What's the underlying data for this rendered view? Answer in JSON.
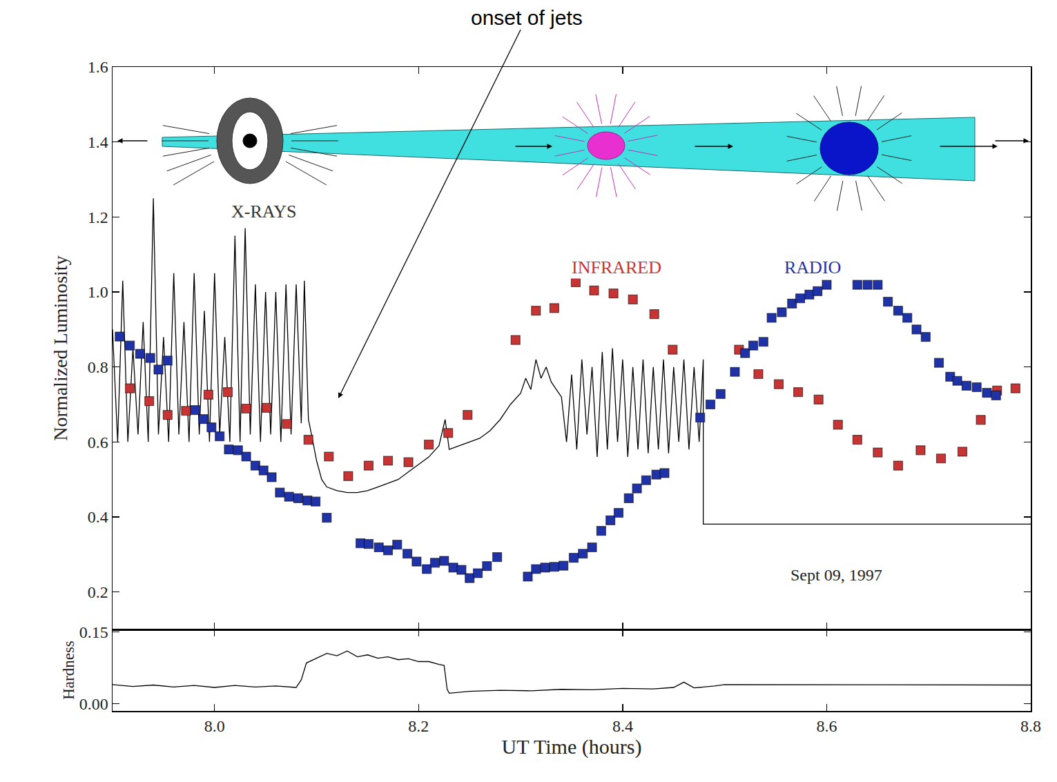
{
  "chart_data": [
    {
      "type": "scatter",
      "y_label": "Normalized Luminosity",
      "xlim": [
        7.9,
        8.8
      ],
      "xticks": [
        {
          "value": 8,
          "label": "8.0"
        },
        8.2,
        8.4,
        8.6,
        8.8
      ],
      "ylim": [
        0.1,
        1.6
      ],
      "yticks": [
        0.2,
        0.4,
        0.6,
        0.8,
        {
          "value": 1,
          "label": "1.0"
        },
        1.2,
        1.4,
        1.6
      ],
      "tick_labels": "y",
      "grid": false,
      "series": [
        {
          "name": "X-RAYS",
          "type": "line",
          "color": "#000000",
          "x": [
            7.9,
            7.905,
            7.91,
            7.915,
            7.92,
            7.925,
            7.93,
            7.935,
            7.94,
            7.945,
            7.95,
            7.955,
            7.96,
            7.965,
            7.97,
            7.975,
            7.98,
            7.985,
            7.99,
            7.995,
            8.0,
            8.005,
            8.01,
            8.015,
            8.02,
            8.025,
            8.03,
            8.035,
            8.04,
            8.045,
            8.05,
            8.055,
            8.06,
            8.065,
            8.07,
            8.075,
            8.08,
            8.085,
            8.088,
            8.092,
            8.095,
            8.1,
            8.105,
            8.11,
            8.12,
            8.13,
            8.14,
            8.15,
            8.16,
            8.17,
            8.18,
            8.19,
            8.2,
            8.21,
            8.22,
            8.226,
            8.23,
            8.24,
            8.25,
            8.26,
            8.27,
            8.28,
            8.29,
            8.3,
            8.305,
            8.31,
            8.315,
            8.32,
            8.325,
            8.33,
            8.335,
            8.34,
            8.345,
            8.35,
            8.355,
            8.36,
            8.365,
            8.37,
            8.375,
            8.38,
            8.385,
            8.39,
            8.395,
            8.4,
            8.405,
            8.41,
            8.415,
            8.42,
            8.425,
            8.43,
            8.435,
            8.44,
            8.445,
            8.45,
            8.455,
            8.46,
            8.465,
            8.47,
            8.475,
            8.479,
            8.479,
            8.8
          ],
          "values": [
            0.9,
            0.6,
            1.03,
            0.6,
            0.85,
            0.62,
            0.92,
            0.6,
            1.25,
            0.62,
            0.88,
            0.6,
            1.05,
            0.62,
            0.92,
            0.6,
            1.05,
            0.62,
            0.95,
            0.6,
            1.05,
            0.62,
            0.88,
            0.6,
            1.15,
            0.6,
            1.17,
            0.62,
            1.02,
            0.6,
            1.0,
            0.62,
            1.0,
            0.6,
            1.02,
            0.62,
            1.02,
            0.65,
            1.03,
            0.66,
            0.62,
            0.55,
            0.5,
            0.48,
            0.47,
            0.465,
            0.465,
            0.47,
            0.48,
            0.49,
            0.5,
            0.52,
            0.54,
            0.56,
            0.59,
            0.66,
            0.58,
            0.59,
            0.6,
            0.61,
            0.63,
            0.66,
            0.7,
            0.73,
            0.77,
            0.74,
            0.82,
            0.77,
            0.8,
            0.76,
            0.74,
            0.72,
            0.6,
            0.78,
            0.58,
            0.82,
            0.62,
            0.8,
            0.56,
            0.84,
            0.58,
            0.85,
            0.6,
            0.82,
            0.56,
            0.8,
            0.58,
            0.82,
            0.57,
            0.8,
            0.58,
            0.82,
            0.57,
            0.8,
            0.6,
            0.82,
            0.58,
            0.8,
            0.6,
            0.82,
            0.381,
            0.381
          ]
        },
        {
          "name": "INFRARED",
          "type": "scatter",
          "marker": "square",
          "color": "#c83434",
          "x": [
            7.917,
            7.936,
            7.954,
            7.972,
            7.994,
            8.013,
            8.031,
            8.051,
            8.071,
            8.092,
            8.112,
            8.131,
            8.151,
            8.17,
            8.19,
            8.21,
            8.229,
            8.248,
            8.295,
            8.315,
            8.333,
            8.354,
            8.372,
            8.391,
            8.41,
            8.431,
            8.449,
            8.514,
            8.533,
            8.553,
            8.572,
            8.592,
            8.611,
            8.63,
            8.65,
            8.67,
            8.692,
            8.712,
            8.733,
            8.751,
            8.767,
            8.785
          ],
          "values": [
            0.743,
            0.709,
            0.672,
            0.683,
            0.726,
            0.733,
            0.689,
            0.691,
            0.648,
            0.606,
            0.561,
            0.509,
            0.537,
            0.55,
            0.546,
            0.593,
            0.624,
            0.672,
            0.872,
            0.95,
            0.957,
            1.026,
            1.004,
            0.996,
            0.98,
            0.941,
            0.846,
            0.846,
            0.781,
            0.754,
            0.733,
            0.713,
            0.646,
            0.606,
            0.572,
            0.537,
            0.578,
            0.556,
            0.574,
            0.659,
            0.737,
            0.743
          ]
        },
        {
          "name": "RADIO",
          "type": "scatter",
          "marker": "square",
          "color": "#1f32a8",
          "x": [
            7.907,
            7.917,
            7.927,
            7.937,
            7.945,
            7.954,
            7.981,
            7.989,
            7.997,
            8.005,
            8.014,
            8.023,
            8.031,
            8.04,
            8.048,
            8.056,
            8.064,
            8.073,
            8.082,
            8.091,
            8.099,
            8.11,
            8.143,
            8.151,
            8.161,
            8.17,
            8.179,
            8.189,
            8.198,
            8.208,
            8.216,
            8.225,
            8.234,
            8.242,
            8.25,
            8.258,
            8.267,
            8.277,
            8.307,
            8.315,
            8.324,
            8.333,
            8.342,
            8.352,
            8.361,
            8.37,
            8.379,
            8.388,
            8.396,
            8.406,
            8.414,
            8.423,
            8.433,
            8.441,
            8.476,
            8.486,
            8.496,
            8.51,
            8.52,
            8.528,
            8.538,
            8.546,
            8.556,
            8.566,
            8.574,
            8.583,
            8.591,
            8.6,
            8.63,
            8.64,
            8.65,
            8.66,
            8.67,
            8.679,
            8.688,
            8.697,
            8.71,
            8.721,
            8.728,
            8.737,
            8.747,
            8.757,
            8.766
          ],
          "values": [
            0.881,
            0.857,
            0.835,
            0.824,
            0.793,
            0.817,
            0.685,
            0.661,
            0.639,
            0.615,
            0.58,
            0.578,
            0.561,
            0.537,
            0.524,
            0.506,
            0.465,
            0.454,
            0.45,
            0.444,
            0.441,
            0.398,
            0.33,
            0.328,
            0.319,
            0.311,
            0.326,
            0.302,
            0.281,
            0.261,
            0.278,
            0.283,
            0.265,
            0.259,
            0.237,
            0.25,
            0.269,
            0.293,
            0.241,
            0.261,
            0.265,
            0.267,
            0.27,
            0.291,
            0.302,
            0.319,
            0.363,
            0.391,
            0.411,
            0.45,
            0.476,
            0.498,
            0.513,
            0.517,
            0.665,
            0.7,
            0.728,
            0.787,
            0.837,
            0.857,
            0.867,
            0.931,
            0.946,
            0.969,
            0.983,
            0.993,
            1.002,
            1.019,
            1.019,
            1.019,
            1.019,
            0.974,
            0.95,
            0.931,
            0.9,
            0.88,
            0.811,
            0.774,
            0.763,
            0.75,
            0.746,
            0.731,
            0.724
          ]
        }
      ],
      "annotations": [
        {
          "text": "onset of jets"
        },
        {
          "text": "Sept 09, 1997"
        }
      ]
    },
    {
      "type": "line",
      "x_label": "UT Time (hours)",
      "y_label": "Hardness",
      "xlim": [
        7.9,
        8.8
      ],
      "xticks": [
        {
          "value": 8,
          "label": "8.0"
        },
        8.2,
        8.4,
        8.6,
        8.8
      ],
      "ylim": [
        -0.015,
        0.155
      ],
      "yticks": [
        {
          "value": 0,
          "label": "0.00"
        },
        0.15
      ],
      "grid": false,
      "series": [
        {
          "type": "line",
          "color": "#000000",
          "x": [
            7.9,
            7.92,
            7.94,
            7.96,
            7.98,
            8.0,
            8.02,
            8.04,
            8.06,
            8.08,
            8.085,
            8.09,
            8.1,
            8.11,
            8.12,
            8.13,
            8.14,
            8.15,
            8.16,
            8.17,
            8.18,
            8.19,
            8.2,
            8.21,
            8.22,
            8.225,
            8.228,
            8.23,
            8.25,
            8.28,
            8.31,
            8.34,
            8.37,
            8.4,
            8.43,
            8.45,
            8.46,
            8.47,
            8.49,
            8.5,
            8.8
          ],
          "values": [
            0.04,
            0.036,
            0.039,
            0.035,
            0.038,
            0.034,
            0.038,
            0.035,
            0.037,
            0.034,
            0.05,
            0.085,
            0.095,
            0.105,
            0.1,
            0.11,
            0.098,
            0.102,
            0.095,
            0.098,
            0.092,
            0.094,
            0.088,
            0.088,
            0.082,
            0.08,
            0.03,
            0.022,
            0.026,
            0.028,
            0.027,
            0.03,
            0.029,
            0.032,
            0.031,
            0.034,
            0.045,
            0.033,
            0.037,
            0.04,
            0.039
          ]
        }
      ]
    }
  ]
}
